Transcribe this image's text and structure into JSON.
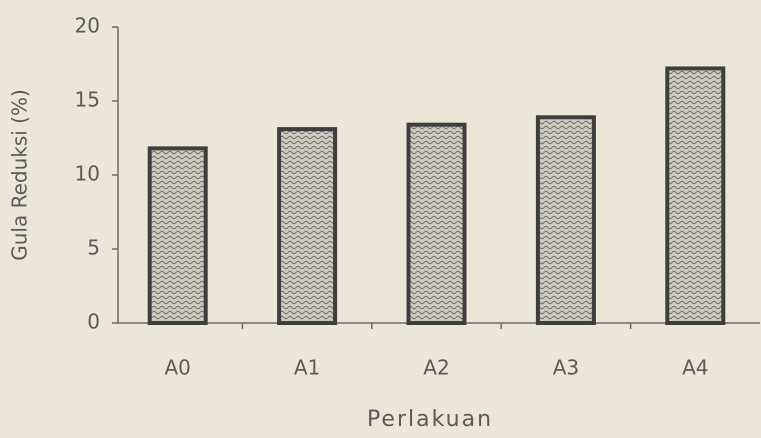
{
  "chart_data": {
    "type": "bar",
    "xlabel": "Perlakuan",
    "ylabel": "Gula Reduksi (%)",
    "categories": [
      "A0",
      "A1",
      "A2",
      "A3",
      "A4"
    ],
    "values": [
      11.8,
      13.1,
      13.4,
      13.9,
      17.2
    ],
    "color": "#a9a9a9",
    "ylim": [
      0,
      20
    ],
    "yticks": [
      0,
      5,
      10,
      15,
      20
    ],
    "grid": false
  }
}
